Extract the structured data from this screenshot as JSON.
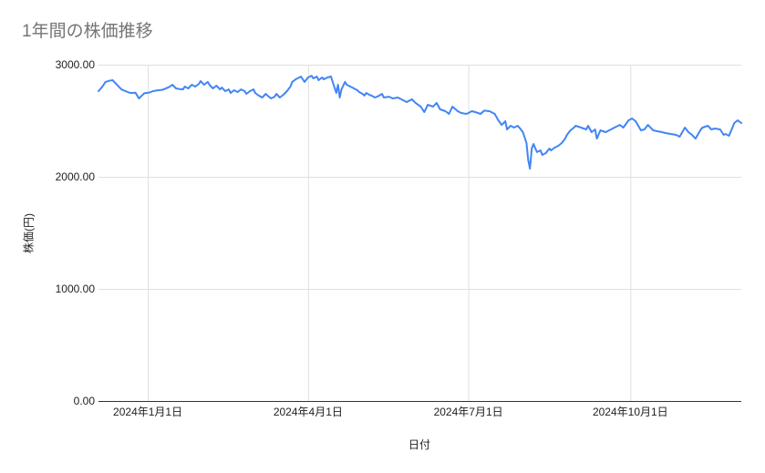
{
  "chart_data": {
    "type": "line",
    "title": "1年間の株価推移",
    "xlabel": "日付",
    "ylabel": "株価(円)",
    "ylim": [
      0,
      3000
    ],
    "x_range_days": [
      0,
      365
    ],
    "grid": true,
    "legend": "none",
    "colors": {
      "line": "#4285f4",
      "grid": "#e0e0e0",
      "axis": "#333333",
      "tick_text": "#212121",
      "title_text": "#757575"
    },
    "y_ticks": [
      {
        "value": 3000,
        "label": "3000.00"
      },
      {
        "value": 2000,
        "label": "2000.00"
      },
      {
        "value": 1000,
        "label": "1000.00"
      },
      {
        "value": 0,
        "label": "0.00"
      }
    ],
    "x_ticks": [
      {
        "day": 28,
        "label": "2024年1月1日"
      },
      {
        "day": 119,
        "label": "2024年4月1日"
      },
      {
        "day": 210,
        "label": "2024年7月1日"
      },
      {
        "day": 302,
        "label": "2024年10月1日"
      }
    ],
    "points": [
      [
        0,
        2764
      ],
      [
        2,
        2800
      ],
      [
        4,
        2846
      ],
      [
        6,
        2856
      ],
      [
        8,
        2862
      ],
      [
        10,
        2830
      ],
      [
        13,
        2780
      ],
      [
        16,
        2760
      ],
      [
        18,
        2748
      ],
      [
        21,
        2750
      ],
      [
        23,
        2699
      ],
      [
        25,
        2730
      ],
      [
        26,
        2745
      ],
      [
        29,
        2752
      ],
      [
        31,
        2764
      ],
      [
        33,
        2770
      ],
      [
        36,
        2776
      ],
      [
        37,
        2780
      ],
      [
        40,
        2800
      ],
      [
        42,
        2821
      ],
      [
        44,
        2789
      ],
      [
        46,
        2783
      ],
      [
        48,
        2780
      ],
      [
        49,
        2805
      ],
      [
        51,
        2789
      ],
      [
        53,
        2821
      ],
      [
        55,
        2805
      ],
      [
        57,
        2829
      ],
      [
        58,
        2854
      ],
      [
        60,
        2821
      ],
      [
        62,
        2846
      ],
      [
        63,
        2821
      ],
      [
        65,
        2789
      ],
      [
        67,
        2813
      ],
      [
        69,
        2780
      ],
      [
        70,
        2797
      ],
      [
        72,
        2764
      ],
      [
        74,
        2780
      ],
      [
        75,
        2748
      ],
      [
        77,
        2772
      ],
      [
        79,
        2756
      ],
      [
        81,
        2780
      ],
      [
        83,
        2764
      ],
      [
        84,
        2740
      ],
      [
        86,
        2764
      ],
      [
        88,
        2780
      ],
      [
        89,
        2748
      ],
      [
        91,
        2724
      ],
      [
        93,
        2707
      ],
      [
        95,
        2740
      ],
      [
        96,
        2724
      ],
      [
        98,
        2699
      ],
      [
        100,
        2715
      ],
      [
        101,
        2740
      ],
      [
        103,
        2707
      ],
      [
        105,
        2732
      ],
      [
        107,
        2764
      ],
      [
        109,
        2805
      ],
      [
        110,
        2846
      ],
      [
        112,
        2870
      ],
      [
        114,
        2886
      ],
      [
        115,
        2894
      ],
      [
        117,
        2846
      ],
      [
        119,
        2886
      ],
      [
        121,
        2902
      ],
      [
        122,
        2878
      ],
      [
        124,
        2894
      ],
      [
        125,
        2862
      ],
      [
        127,
        2886
      ],
      [
        128,
        2870
      ],
      [
        130,
        2886
      ],
      [
        132,
        2894
      ],
      [
        133,
        2846
      ],
      [
        135,
        2748
      ],
      [
        136,
        2821
      ],
      [
        137,
        2707
      ],
      [
        138,
        2780
      ],
      [
        140,
        2846
      ],
      [
        141,
        2821
      ],
      [
        143,
        2805
      ],
      [
        145,
        2789
      ],
      [
        147,
        2772
      ],
      [
        148,
        2756
      ],
      [
        150,
        2740
      ],
      [
        151,
        2724
      ],
      [
        152,
        2748
      ],
      [
        154,
        2730
      ],
      [
        155,
        2724
      ],
      [
        157,
        2707
      ],
      [
        159,
        2720
      ],
      [
        161,
        2740
      ],
      [
        162,
        2707
      ],
      [
        165,
        2715
      ],
      [
        167,
        2699
      ],
      [
        170,
        2707
      ],
      [
        173,
        2683
      ],
      [
        175,
        2667
      ],
      [
        178,
        2691
      ],
      [
        180,
        2659
      ],
      [
        183,
        2626
      ],
      [
        185,
        2577
      ],
      [
        187,
        2642
      ],
      [
        190,
        2626
      ],
      [
        192,
        2659
      ],
      [
        194,
        2602
      ],
      [
        197,
        2585
      ],
      [
        199,
        2561
      ],
      [
        201,
        2626
      ],
      [
        204,
        2585
      ],
      [
        206,
        2569
      ],
      [
        209,
        2561
      ],
      [
        212,
        2585
      ],
      [
        214,
        2577
      ],
      [
        217,
        2561
      ],
      [
        219,
        2590
      ],
      [
        222,
        2585
      ],
      [
        225,
        2561
      ],
      [
        227,
        2504
      ],
      [
        229,
        2463
      ],
      [
        231,
        2496
      ],
      [
        232,
        2423
      ],
      [
        234,
        2455
      ],
      [
        236,
        2439
      ],
      [
        238,
        2455
      ],
      [
        239,
        2439
      ],
      [
        241,
        2398
      ],
      [
        243,
        2301
      ],
      [
        244,
        2150
      ],
      [
        245,
        2073
      ],
      [
        246,
        2252
      ],
      [
        247,
        2293
      ],
      [
        249,
        2220
      ],
      [
        251,
        2236
      ],
      [
        252,
        2195
      ],
      [
        254,
        2211
      ],
      [
        256,
        2252
      ],
      [
        257,
        2236
      ],
      [
        259,
        2260
      ],
      [
        261,
        2276
      ],
      [
        263,
        2301
      ],
      [
        265,
        2341
      ],
      [
        266,
        2374
      ],
      [
        268,
        2415
      ],
      [
        270,
        2439
      ],
      [
        271,
        2455
      ],
      [
        274,
        2439
      ],
      [
        277,
        2423
      ],
      [
        278,
        2455
      ],
      [
        280,
        2398
      ],
      [
        282,
        2423
      ],
      [
        283,
        2341
      ],
      [
        285,
        2415
      ],
      [
        288,
        2398
      ],
      [
        291,
        2423
      ],
      [
        293,
        2439
      ],
      [
        296,
        2463
      ],
      [
        298,
        2439
      ],
      [
        301,
        2504
      ],
      [
        303,
        2520
      ],
      [
        305,
        2496
      ],
      [
        308,
        2415
      ],
      [
        310,
        2423
      ],
      [
        312,
        2463
      ],
      [
        315,
        2415
      ],
      [
        317,
        2407
      ],
      [
        320,
        2398
      ],
      [
        322,
        2390
      ],
      [
        325,
        2382
      ],
      [
        328,
        2374
      ],
      [
        330,
        2358
      ],
      [
        333,
        2439
      ],
      [
        335,
        2398
      ],
      [
        337,
        2374
      ],
      [
        339,
        2341
      ],
      [
        342,
        2423
      ],
      [
        343,
        2439
      ],
      [
        346,
        2455
      ],
      [
        348,
        2423
      ],
      [
        350,
        2431
      ],
      [
        353,
        2423
      ],
      [
        355,
        2374
      ],
      [
        356,
        2382
      ],
      [
        358,
        2366
      ],
      [
        360,
        2439
      ],
      [
        361,
        2480
      ],
      [
        363,
        2504
      ],
      [
        365,
        2480
      ]
    ]
  }
}
